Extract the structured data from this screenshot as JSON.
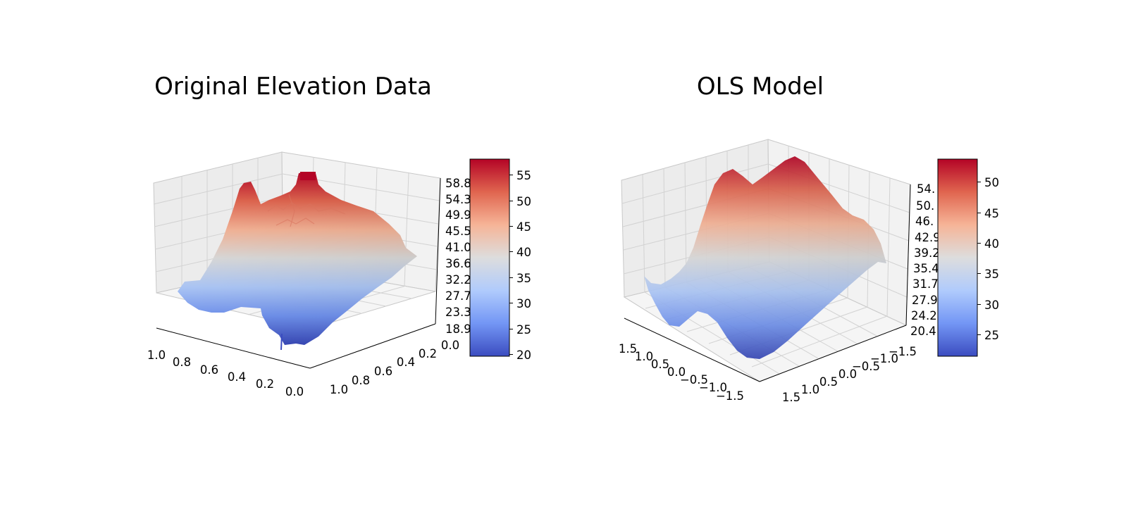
{
  "colormap": [
    "#3b4cc0",
    "#7396f5",
    "#b0cbfc",
    "#dddddd",
    "#f6b497",
    "#e0654f",
    "#b40426"
  ],
  "chart_data": [
    {
      "type": "surface",
      "title": "Original Elevation Data",
      "x_tick_labels": [
        "1.0",
        "0.8",
        "0.6",
        "0.4",
        "0.2",
        "0.0"
      ],
      "y_tick_labels": [
        "1.0",
        "0.8",
        "0.6",
        "0.4",
        "0.2",
        "0.0"
      ],
      "z_tick_labels": [
        "58.8",
        "54.3",
        "49.9",
        "45.5",
        "41.0",
        "36.6",
        "32.2",
        "27.7",
        "23.3",
        "18.9"
      ],
      "zlim": [
        18.9,
        58.8
      ],
      "colorbar": {
        "ticks": [
          "55",
          "50",
          "45",
          "40",
          "35",
          "30",
          "25",
          "20"
        ],
        "range": [
          19.5,
          57.5
        ]
      },
      "peaks": [
        {
          "x": 0.55,
          "y": 0.35,
          "z": 58.8
        },
        {
          "x": 0.85,
          "y": 0.2,
          "z": 51.0
        }
      ],
      "minimum": {
        "x": 0.25,
        "y": 0.8,
        "z": 19.5
      }
    },
    {
      "type": "surface",
      "title": "OLS Model",
      "x_tick_labels": [
        "1.5",
        "1.0",
        "0.5",
        "0.0",
        "−0.5",
        "−1.0",
        "−1.5"
      ],
      "y_tick_labels": [
        "1.5",
        "1.0",
        "0.5",
        "0.0",
        "−0.5",
        "−1.0",
        "−1.5"
      ],
      "z_tick_labels": [
        "54.",
        "50.",
        "46.",
        "42.9",
        "39.2",
        "35.4",
        "31.7",
        "27.9",
        "24.2",
        "20.4"
      ],
      "zlim": [
        20.4,
        54.4
      ],
      "colorbar": {
        "ticks": [
          "50",
          "45",
          "40",
          "35",
          "30",
          "25"
        ],
        "range": [
          21.5,
          53.5
        ]
      },
      "peaks": [
        {
          "x": 0.6,
          "y": -0.6,
          "z": 54.0
        },
        {
          "x": 1.3,
          "y": -0.9,
          "z": 50.0
        }
      ],
      "minimum": {
        "x": 0.2,
        "y": 1.2,
        "z": 20.5
      }
    }
  ]
}
